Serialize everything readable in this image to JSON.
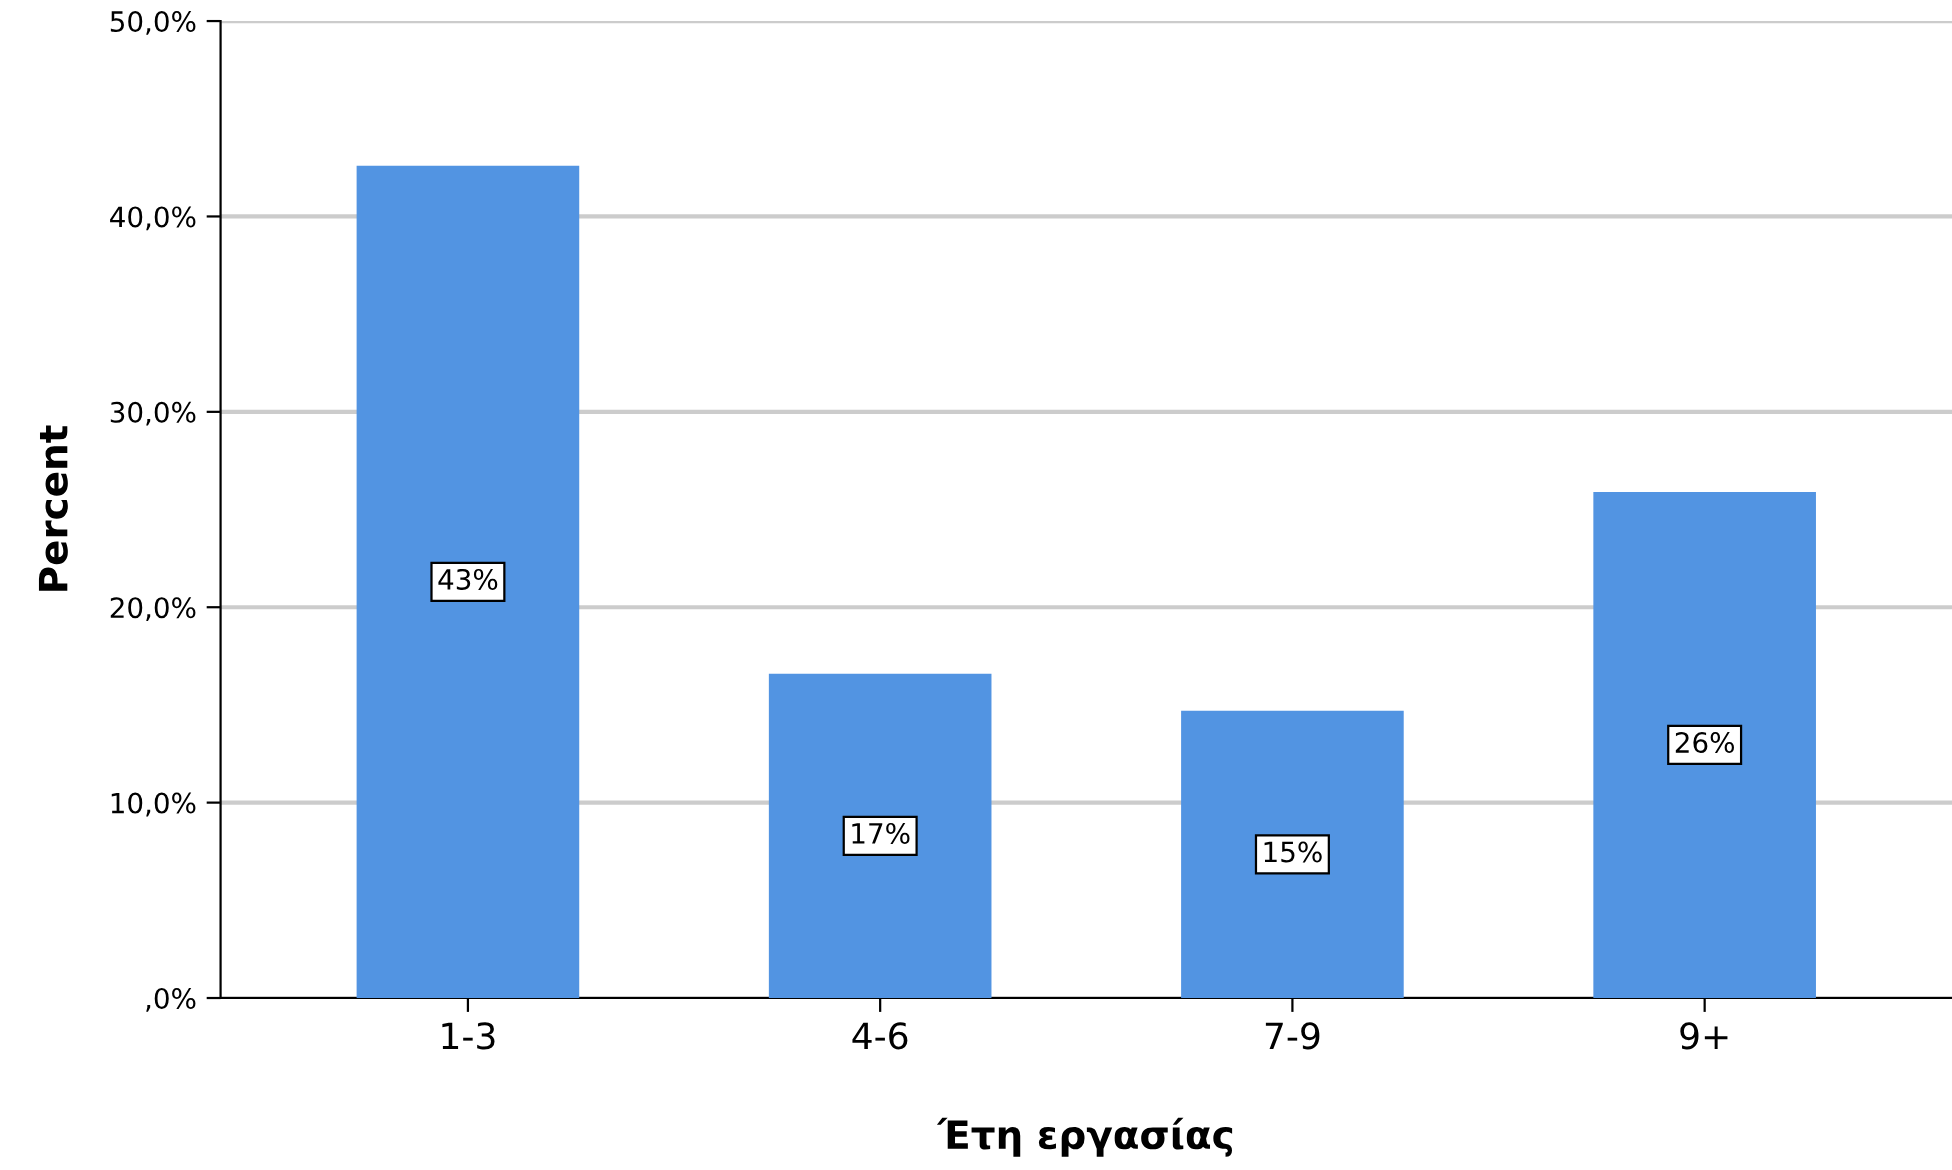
{
  "chart_data": {
    "type": "bar",
    "xlabel": "Έτη εργασίας",
    "ylabel": "Percent",
    "categories": [
      "1-3",
      "4-6",
      "7-9",
      "9+"
    ],
    "values": [
      42.6,
      16.6,
      14.7,
      25.9
    ],
    "value_labels": [
      "43%",
      "17%",
      "15%",
      "26%"
    ],
    "color": "#5294e2",
    "ylim": [
      0,
      50
    ],
    "yticks": [
      {
        "value": 0,
        "label": ",0%"
      },
      {
        "value": 10,
        "label": "10,0%"
      },
      {
        "value": 20,
        "label": "20,0%"
      },
      {
        "value": 30,
        "label": "30,0%"
      },
      {
        "value": 40,
        "label": "40,0%"
      },
      {
        "value": 50,
        "label": "50,0%"
      }
    ],
    "grid": "y"
  }
}
